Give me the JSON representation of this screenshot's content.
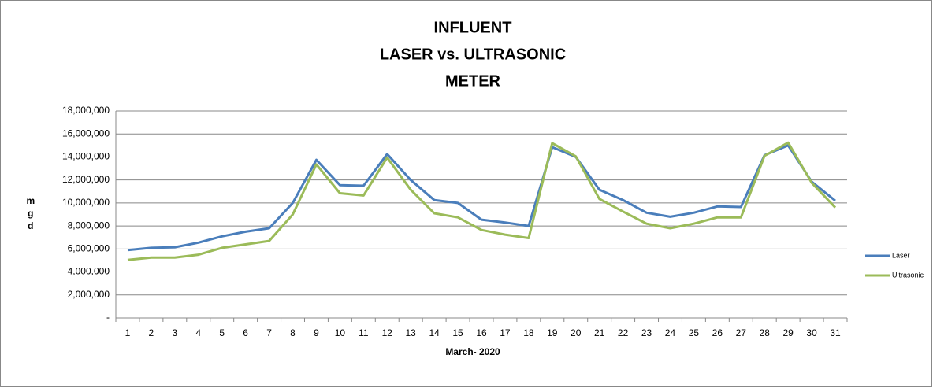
{
  "chart_data": {
    "type": "line",
    "title": [
      "INFLUENT",
      "LASER  vs. ULTRASONIC",
      "METER"
    ],
    "xlabel": "March- 2020",
    "ylabel": "mgd",
    "categories": [
      1,
      2,
      3,
      4,
      5,
      6,
      7,
      8,
      9,
      10,
      11,
      12,
      13,
      14,
      15,
      16,
      17,
      18,
      19,
      20,
      21,
      22,
      23,
      24,
      25,
      26,
      27,
      28,
      29,
      30,
      31
    ],
    "series": [
      {
        "name": "Laser",
        "color": "#4a7ebb",
        "values": [
          5900000,
          6100000,
          6150000,
          6550000,
          7100000,
          7500000,
          7800000,
          10000000,
          13750000,
          11550000,
          11500000,
          14250000,
          12000000,
          10250000,
          10000000,
          8550000,
          8300000,
          8000000,
          14850000,
          14000000,
          11150000,
          10250000,
          9150000,
          8800000,
          9150000,
          9700000,
          9650000,
          14150000,
          15000000,
          11850000,
          10200000
        ]
      },
      {
        "name": "Ultrasonic",
        "color": "#9bbb59",
        "values": [
          5050000,
          5250000,
          5250000,
          5500000,
          6100000,
          6400000,
          6700000,
          9000000,
          13350000,
          10850000,
          10650000,
          13950000,
          11150000,
          9100000,
          8750000,
          7650000,
          7250000,
          6950000,
          15200000,
          14050000,
          10350000,
          9250000,
          8200000,
          7800000,
          8200000,
          8750000,
          8750000,
          14100000,
          15250000,
          11750000,
          9600000
        ]
      }
    ],
    "ylim": [
      0,
      18000000
    ],
    "yticks": [
      {
        "value": 0,
        "label": "-"
      },
      {
        "value": 2000000,
        "label": "2,000,000"
      },
      {
        "value": 4000000,
        "label": "4,000,000"
      },
      {
        "value": 6000000,
        "label": "6,000,000"
      },
      {
        "value": 8000000,
        "label": "8,000,000"
      },
      {
        "value": 10000000,
        "label": "10,000,000"
      },
      {
        "value": 12000000,
        "label": "12,000,000"
      },
      {
        "value": 14000000,
        "label": "14,000,000"
      },
      {
        "value": 16000000,
        "label": "16,000,000"
      },
      {
        "value": 18000000,
        "label": "18,000,000"
      }
    ],
    "grid": true,
    "legend": "right"
  }
}
